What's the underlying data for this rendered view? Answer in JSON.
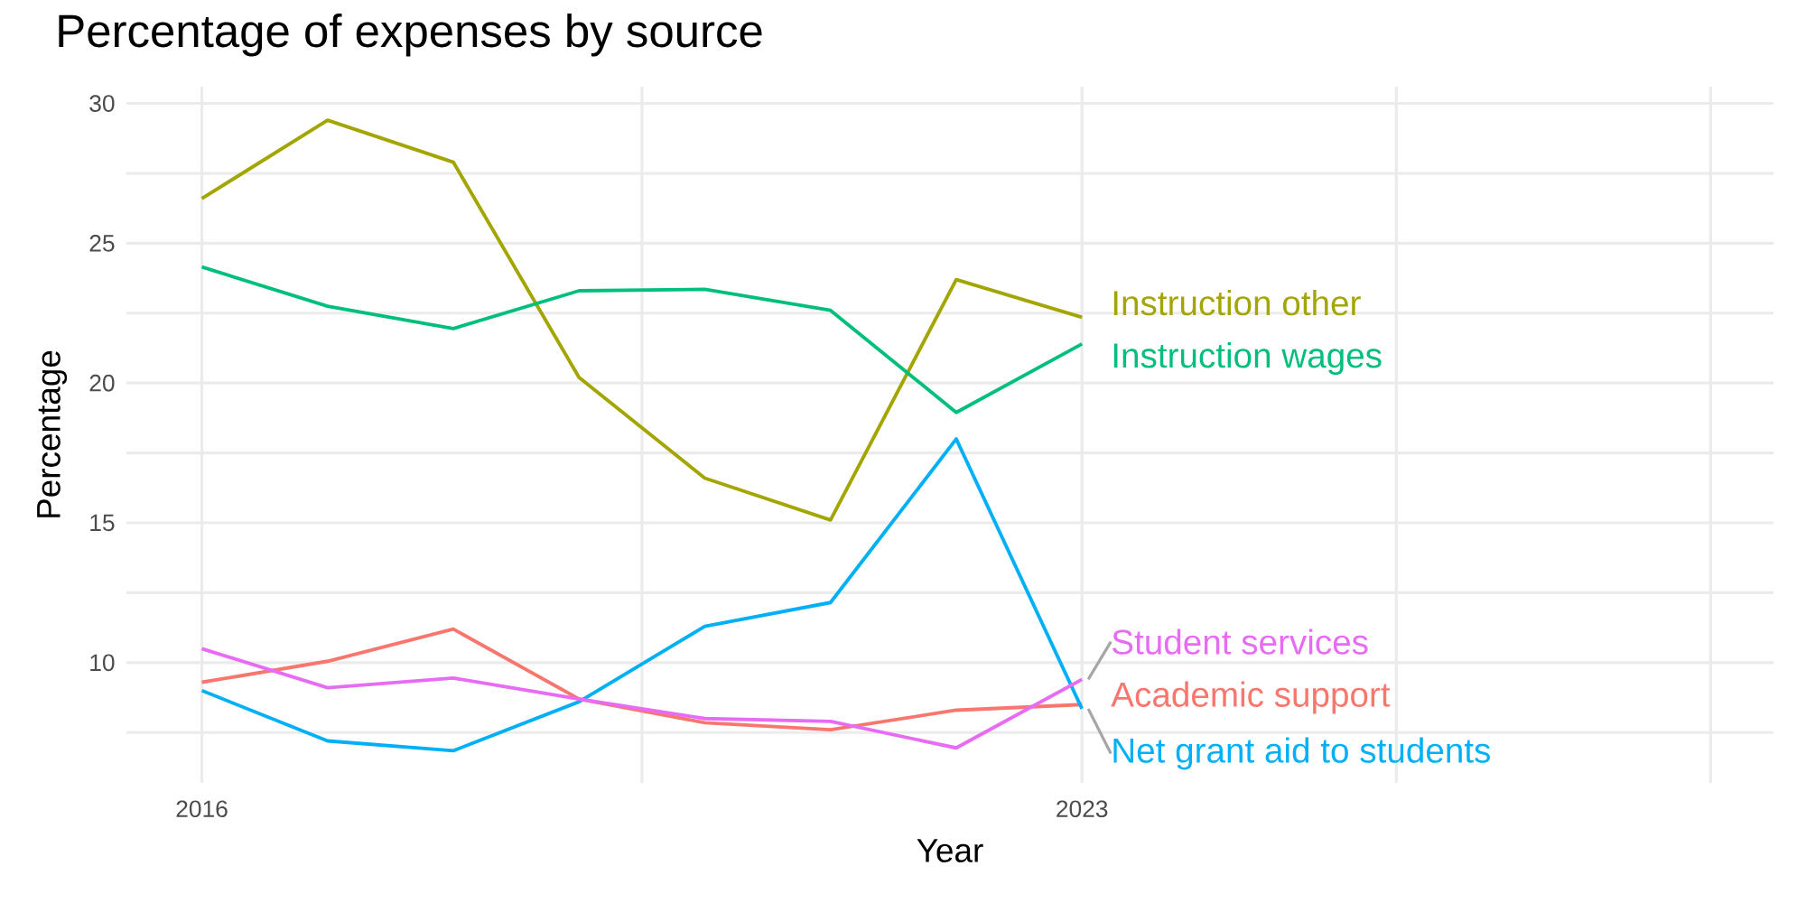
{
  "chart_data": {
    "type": "line",
    "title": "Percentage of expenses by source",
    "xlabel": "Year",
    "ylabel": "Percentage",
    "x": [
      2016,
      2017,
      2018,
      2019,
      2020,
      2021,
      2022,
      2023
    ],
    "xlim": [
      2015.4,
      2028.5
    ],
    "xticks": [
      2016,
      {
        "value": 2019.5,
        "label": null
      },
      2023,
      {
        "value": 2025.5,
        "label": null
      },
      {
        "value": 2028,
        "label": null
      }
    ],
    "ylim": [
      5.7,
      30.6
    ],
    "yticks": [
      {
        "value": 7.5,
        "label": null
      },
      10,
      {
        "value": 12.5,
        "label": null
      },
      15,
      {
        "value": 17.5,
        "label": null
      },
      20,
      {
        "value": 22.5,
        "label": null
      },
      25,
      {
        "value": 27.5,
        "label": null
      },
      30
    ],
    "grid": true,
    "legend": false,
    "line_style": "solid",
    "marker": "none",
    "series": [
      {
        "name": "Academic support",
        "color": "#f8766d",
        "values": [
          9.3,
          10.05,
          11.2,
          8.7,
          7.85,
          7.6,
          8.3,
          8.5
        ]
      },
      {
        "name": "Instruction other",
        "color": "#a3a500",
        "values": [
          26.6,
          29.4,
          27.9,
          20.2,
          16.6,
          15.1,
          23.7,
          22.35
        ]
      },
      {
        "name": "Instruction wages",
        "color": "#00bf7d",
        "values": [
          24.15,
          22.75,
          21.95,
          23.3,
          23.35,
          22.6,
          18.95,
          21.4
        ]
      },
      {
        "name": "Net grant aid to students",
        "color": "#00b0f6",
        "values": [
          9.0,
          7.2,
          6.85,
          8.6,
          11.3,
          12.15,
          18.0,
          8.35
        ]
      },
      {
        "name": "Student services",
        "color": "#e76bf3",
        "values": [
          10.5,
          9.1,
          9.45,
          8.7,
          8.0,
          7.9,
          6.95,
          9.4
        ]
      }
    ]
  }
}
